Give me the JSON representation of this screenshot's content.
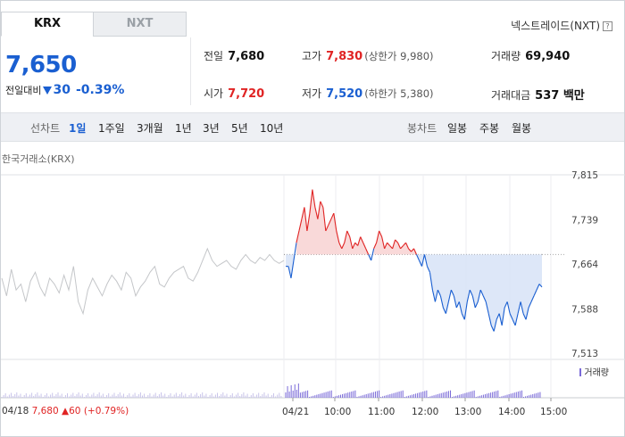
{
  "tabs": [
    {
      "label": "KRX",
      "active": true
    },
    {
      "label": "NXT",
      "active": false
    }
  ],
  "nxt_link": "넥스트레이드(NXT)",
  "nxt_help_icon": "?",
  "price": {
    "current": "7,650",
    "change_label": "전일대비",
    "change_value": "30",
    "change_pct": "-0.39%",
    "direction": "down",
    "color": "#1a5fd1"
  },
  "stats": {
    "prev_close": {
      "label": "전일",
      "value": "7,680"
    },
    "high": {
      "label": "고가",
      "value": "7,830",
      "sub": "(상한가 9,980)"
    },
    "volume": {
      "label": "거래량",
      "value": "69,940"
    },
    "open": {
      "label": "시가",
      "value": "7,720"
    },
    "low": {
      "label": "저가",
      "value": "7,520",
      "sub": "(하한가 5,380)"
    },
    "turnover": {
      "label": "거래대금",
      "value": "537 백만"
    }
  },
  "period_bar": {
    "line_label": "선차트",
    "periods": [
      "1일",
      "1주일",
      "3개월",
      "1년",
      "3년",
      "5년",
      "10년"
    ],
    "selected": "1일",
    "candle_label": "봉차트",
    "candles": [
      "일봉",
      "주봉",
      "월봉"
    ]
  },
  "exchange_label": "한국거래소(KRX)",
  "volume_legend": "거래량",
  "prev_day_info": {
    "date": "04/18",
    "close": "7,680",
    "arrow": "▲",
    "change": "60",
    "pct": "(+0.79%)"
  },
  "colors": {
    "up": "#e02424",
    "down": "#1a5fd1",
    "prev_day_line": "#c4c6c9",
    "up_fill": "#f8d2d2",
    "down_fill": "#d7e3f7",
    "volume": "#7a6ad8"
  },
  "chart_data": {
    "type": "line",
    "ylim": [
      7513,
      7815
    ],
    "ytick_labels": [
      "7,815",
      "7,739",
      "7,664",
      "7,588",
      "7,513"
    ],
    "yticks": [
      7815,
      7739,
      7664,
      7588,
      7513
    ],
    "xtick_labels": [
      "04/18",
      "04/21",
      "10:00",
      "11:00",
      "12:00",
      "13:00",
      "14:00",
      "15:00"
    ],
    "reference_price": 7680,
    "series": [
      {
        "values": [
          7640,
          7610,
          7655,
          7620,
          7630,
          7600,
          7635,
          7650,
          7625,
          7610,
          7640,
          7630,
          7615,
          7645,
          7620,
          7660,
          7600,
          7580,
          7620,
          7640,
          7625,
          7610,
          7630,
          7645,
          7635,
          7620,
          7650,
          7640,
          7610,
          7625,
          7635,
          7650,
          7660,
          7630,
          7625,
          7640,
          7650,
          7655,
          7660,
          7640,
          7635,
          7650,
          7670,
          7690,
          7670,
          7660,
          7665,
          7670,
          7660,
          7655,
          7670,
          7680,
          7670,
          7665,
          7675,
          7670,
          7680,
          7670,
          7665,
          7670
        ]
      },
      {
        "values": [
          7660,
          7660,
          7640,
          7670,
          7700,
          7720,
          7740,
          7760,
          7720,
          7750,
          7790,
          7760,
          7740,
          7770,
          7760,
          7720,
          7730,
          7740,
          7750,
          7720,
          7700,
          7690,
          7700,
          7720,
          7710,
          7690,
          7700,
          7695,
          7710,
          7700,
          7690,
          7680,
          7670,
          7690,
          7700,
          7720,
          7710,
          7690,
          7700,
          7695,
          7690,
          7705,
          7700,
          7690,
          7695,
          7700,
          7690,
          7685,
          7690,
          7680,
          7670,
          7660,
          7680,
          7660,
          7650,
          7620,
          7600,
          7620,
          7610,
          7590,
          7580,
          7600,
          7620,
          7610,
          7590,
          7600,
          7580,
          7570,
          7600,
          7620,
          7610,
          7590,
          7600,
          7620,
          7610,
          7600,
          7580,
          7560,
          7550,
          7570,
          7580,
          7560,
          7590,
          7600,
          7580,
          7570,
          7560,
          7580,
          7600,
          7580,
          7570,
          7590,
          7600,
          7610,
          7620,
          7630,
          7625
        ]
      }
    ]
  }
}
